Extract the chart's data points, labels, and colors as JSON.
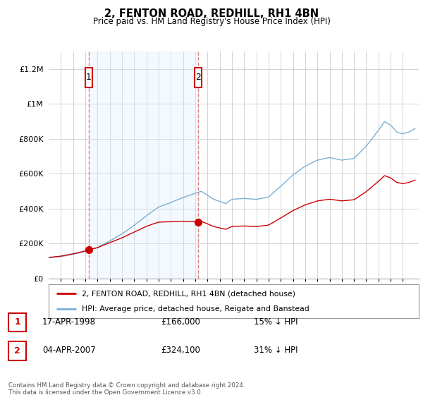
{
  "title": "2, FENTON ROAD, REDHILL, RH1 4BN",
  "subtitle": "Price paid vs. HM Land Registry's House Price Index (HPI)",
  "ylim": [
    0,
    1300000
  ],
  "xlim": [
    1995.0,
    2025.3
  ],
  "yticks": [
    0,
    200000,
    400000,
    600000,
    800000,
    1000000,
    1200000
  ],
  "ytick_labels": [
    "£0",
    "£200K",
    "£400K",
    "£600K",
    "£800K",
    "£1M",
    "£1.2M"
  ],
  "xticks": [
    1996,
    1997,
    1998,
    1999,
    2000,
    2001,
    2002,
    2003,
    2004,
    2005,
    2006,
    2007,
    2008,
    2009,
    2010,
    2011,
    2012,
    2013,
    2014,
    2015,
    2016,
    2017,
    2018,
    2019,
    2020,
    2021,
    2022,
    2023,
    2024
  ],
  "sale1_x": 1998.29,
  "sale1_y": 166000,
  "sale1_label": "1",
  "sale2_x": 2007.25,
  "sale2_y": 324100,
  "sale2_label": "2",
  "line_color_property": "#cc0000",
  "line_color_hpi": "#7ab0d4",
  "vline_color": "#e08080",
  "shade_color": "#ddeeff",
  "background_color": "#ffffff",
  "grid_color": "#cccccc",
  "legend_line1": "2, FENTON ROAD, REDHILL, RH1 4BN (detached house)",
  "legend_line2": "HPI: Average price, detached house, Reigate and Banstead",
  "footer": "Contains HM Land Registry data © Crown copyright and database right 2024.\nThis data is licensed under the Open Government Licence v3.0.",
  "table": [
    {
      "label": "1",
      "date": "17-APR-1998",
      "price": "£166,000",
      "pct": "15% ↓ HPI"
    },
    {
      "label": "2",
      "date": "04-APR-2007",
      "price": "£324,100",
      "pct": "31% ↓ HPI"
    }
  ]
}
